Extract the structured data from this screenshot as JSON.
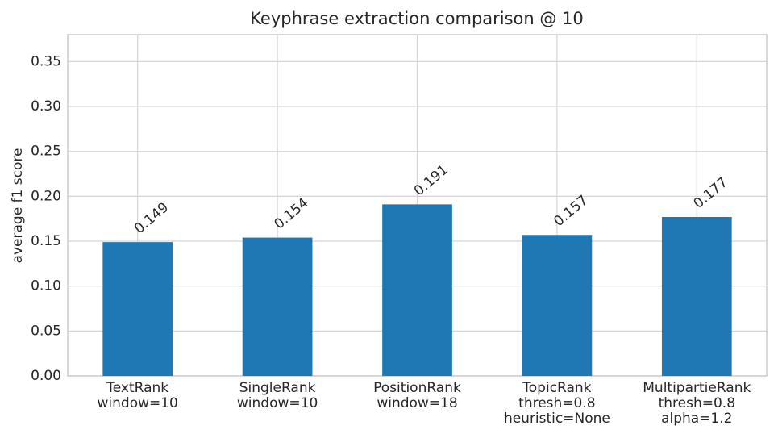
{
  "chart_data": {
    "type": "bar",
    "title": "Keyphrase extraction comparison @ 10",
    "y_label": "average f1 score",
    "categories": [
      [
        "TextRank",
        "window=10"
      ],
      [
        "SingleRank",
        "window=10"
      ],
      [
        "PositionRank",
        "window=18"
      ],
      [
        "TopicRank",
        "thresh=0.8",
        "heuristic=None"
      ],
      [
        "MultipartieRank",
        "thresh=0.8",
        "alpha=1.2"
      ]
    ],
    "values": [
      0.149,
      0.154,
      0.191,
      0.157,
      0.177
    ],
    "color": "#1f77b4",
    "ylim": [
      0,
      0.38
    ],
    "yticks": [
      {
        "value": 0,
        "label": "0.00"
      },
      0.05,
      {
        "value": 0.1,
        "label": "0.10"
      },
      0.15,
      {
        "value": 0.2,
        "label": "0.20"
      },
      0.25,
      {
        "value": 0.3,
        "label": "0.30"
      },
      0.35
    ],
    "grid": true
  }
}
